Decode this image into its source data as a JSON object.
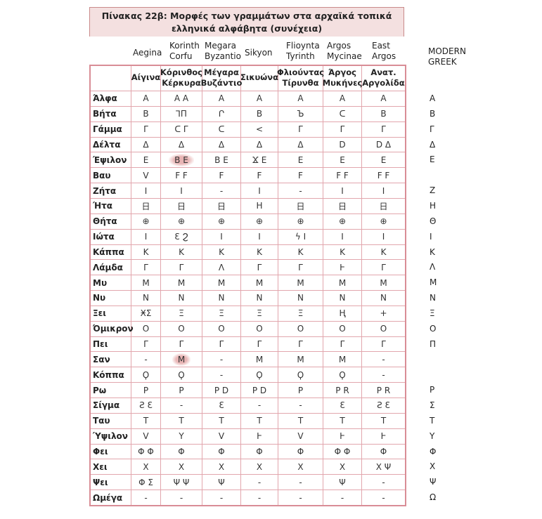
{
  "title": [
    "Πίνακας 22β: Μορφές των γραμμάτων στα αρχαϊκά τοπικά",
    "ελληνικά αλφάβητα (συνέχεια)"
  ],
  "columns": [
    {
      "latin": [
        "Aegina"
      ],
      "greek": [
        "Αίγινα"
      ]
    },
    {
      "latin": [
        "Korinth",
        "Corfu"
      ],
      "greek": [
        "Κόρινθος",
        "Κέρκυρα"
      ]
    },
    {
      "latin": [
        "Megara",
        "Byzantio"
      ],
      "greek": [
        "Μέγαρα",
        "Βυζάντιο"
      ]
    },
    {
      "latin": [
        "Sikyon"
      ],
      "greek": [
        "Σικυώνα"
      ]
    },
    {
      "latin": [
        "Flioynta",
        "Tyrinth"
      ],
      "greek": [
        "Φλιούντας",
        "Τίρυνθα"
      ]
    },
    {
      "latin": [
        "Argos",
        "Mycinae"
      ],
      "greek": [
        "Άργος",
        "Μυκήνες"
      ]
    },
    {
      "latin": [
        "East",
        "Argos"
      ],
      "greek": [
        "Ανατ.",
        "Αργολίδα"
      ]
    }
  ],
  "modern_header": [
    "MODERN",
    "GREEK"
  ],
  "rows": [
    {
      "name": "Άλφα",
      "forms": [
        "Α",
        "Α Α",
        "Α",
        "Α",
        "Α",
        "Α",
        "Α"
      ],
      "modern": "Α"
    },
    {
      "name": "Βήτα",
      "forms": [
        "B",
        "⅂Π",
        "Ր",
        "B",
        "Ъ",
        "ᑕ",
        "B"
      ],
      "modern": "Β"
    },
    {
      "name": "Γάμμα",
      "forms": [
        "Γ",
        "ᑕ Γ",
        "ᑕ",
        "<",
        "Γ",
        "Γ",
        "Γ"
      ],
      "modern": "Γ"
    },
    {
      "name": "Δέλτα",
      "forms": [
        "Δ",
        "Δ",
        "Δ",
        "Δ",
        "Δ",
        "D",
        "D Δ"
      ],
      "modern": "Δ"
    },
    {
      "name": "Έψιλον",
      "forms": [
        "E",
        "B E",
        "B E",
        "Ϫ E",
        "E",
        "E",
        "E"
      ],
      "modern": "Ε"
    },
    {
      "name": "Βαυ",
      "forms": [
        "V",
        "F F",
        "F",
        "F",
        "F",
        "F F",
        "F F"
      ],
      "modern": null
    },
    {
      "name": "Ζήτα",
      "forms": [
        "I",
        "I",
        "-",
        "I",
        "-",
        "I",
        "I"
      ],
      "modern": "Ζ"
    },
    {
      "name": "Ήτα",
      "forms": [
        "日",
        "日",
        "日",
        "H",
        "日",
        "日",
        "日"
      ],
      "modern": "Η"
    },
    {
      "name": "Θήτα",
      "forms": [
        "⊕",
        "⊕",
        "⊕",
        "⊕",
        "⊕",
        "⊕",
        "⊕"
      ],
      "modern": "Θ"
    },
    {
      "name": "Ιώτα",
      "forms": [
        "I",
        "Ɛ Ϩ",
        "I",
        "I",
        "ϟ I",
        "I",
        "I"
      ],
      "modern": "Ι"
    },
    {
      "name": "Κάππα",
      "forms": [
        "K",
        "K",
        "K",
        "K",
        "K",
        "K",
        "K"
      ],
      "modern": "Κ"
    },
    {
      "name": "Λάμδα",
      "forms": [
        "ᒥ",
        "ᒥ",
        "Λ",
        "ᒥ",
        "ᒥ",
        "Ⱶ",
        "ᒥ"
      ],
      "modern": "Λ"
    },
    {
      "name": "Μυ",
      "forms": [
        "Μ",
        "Μ",
        "Μ",
        "Μ",
        "Μ",
        "Μ",
        "Μ"
      ],
      "modern": "Μ"
    },
    {
      "name": "Νυ",
      "forms": [
        "Ν",
        "Ν",
        "Ν",
        "Ν",
        "Ν",
        "Ν",
        "Ν"
      ],
      "modern": "Ν"
    },
    {
      "name": "Ξει",
      "forms": [
        "ӾΣ",
        "Ξ",
        "Ξ",
        "Ξ",
        "Ξ",
        "Ⱨ",
        "+"
      ],
      "modern": "Ξ"
    },
    {
      "name": "Όμικρον",
      "forms": [
        "O",
        "O",
        "O",
        "O",
        "O",
        "O",
        "O"
      ],
      "modern": "Ο"
    },
    {
      "name": "Πει",
      "forms": [
        "Γ",
        "Γ",
        "Γ",
        "Γ",
        "Γ",
        "Γ",
        "Γ"
      ],
      "modern": "Π"
    },
    {
      "name": "Σαν",
      "forms": [
        "-",
        "Μ",
        "-",
        "Μ",
        "Μ",
        "Μ",
        "-"
      ],
      "modern": null
    },
    {
      "name": "Κόππα",
      "forms": [
        "Ϙ",
        "Ϙ",
        "-",
        "Ϙ",
        "Ϙ",
        "Ϙ",
        "-"
      ],
      "modern": null
    },
    {
      "name": "Ρω",
      "forms": [
        "P",
        "P",
        "P D",
        "P D",
        "P",
        "P R",
        "P R"
      ],
      "modern": "Ρ"
    },
    {
      "name": "Σίγμα",
      "forms": [
        "Ƨ Ɛ",
        "-",
        "Ɛ",
        "-",
        "-",
        "Ɛ",
        "Ƨ Ɛ"
      ],
      "modern": "Σ"
    },
    {
      "name": "Ταυ",
      "forms": [
        "T",
        "T",
        "T",
        "T",
        "T",
        "T",
        "T"
      ],
      "modern": "Τ"
    },
    {
      "name": "Ύψιλον",
      "forms": [
        "V",
        "Y",
        "V",
        "Ͱ",
        "V",
        "Ͱ",
        "Ͱ"
      ],
      "modern": "Υ"
    },
    {
      "name": "Φει",
      "forms": [
        "Φ Φ",
        "Φ",
        "Φ",
        "Φ",
        "Φ",
        "Φ Φ",
        "Φ"
      ],
      "modern": "Φ"
    },
    {
      "name": "Χει",
      "forms": [
        "X",
        "X",
        "X",
        "X",
        "X",
        "X",
        "X Ψ"
      ],
      "modern": "Χ"
    },
    {
      "name": "Ψει",
      "forms": [
        "Φ Σ",
        "Ψ Ψ",
        "Ψ",
        "-",
        "-",
        "Ψ",
        "-"
      ],
      "modern": "Ψ"
    },
    {
      "name": "Ωμέγα",
      "forms": [
        "-",
        "-",
        "-",
        "-",
        "-",
        "-",
        "-"
      ],
      "modern": "Ω"
    }
  ]
}
